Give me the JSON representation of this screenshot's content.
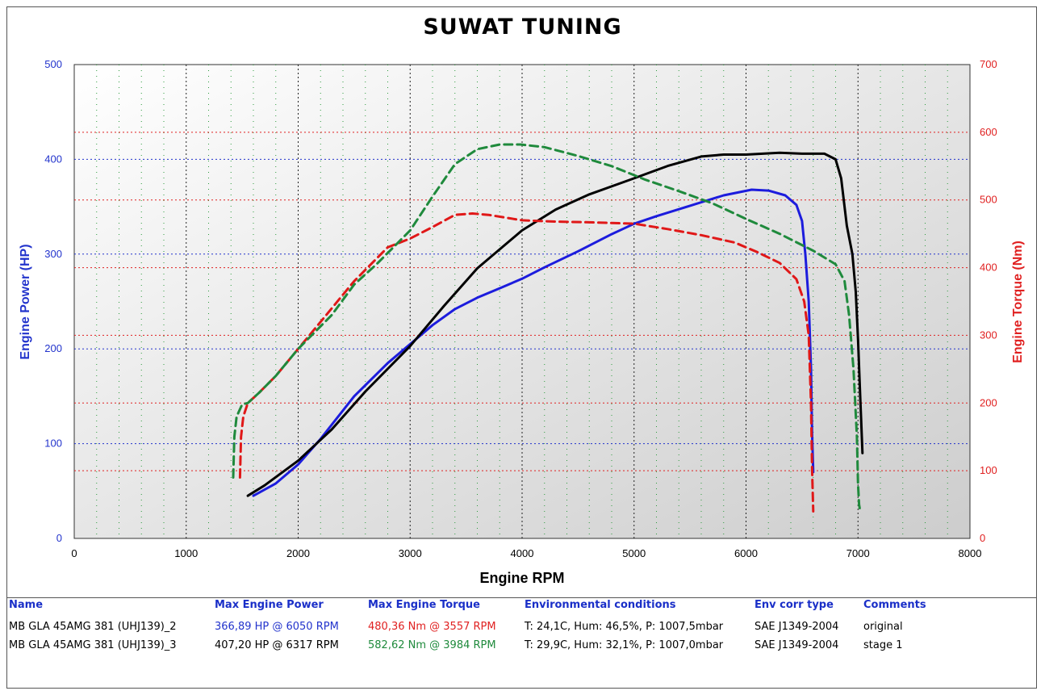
{
  "title": "SUWAT TUNING",
  "colors": {
    "power_axis": "#2233cc",
    "torque_axis": "#e02020",
    "plot_bg_top": "#ffffff",
    "plot_bg_bottom": "#cfcfcf"
  },
  "chart_data": {
    "type": "line",
    "xlabel": "Engine RPM",
    "ylabel_left": "Engine Power (HP)",
    "ylabel_right": "Engine Torque (Nm)",
    "xlim": [
      0,
      8000
    ],
    "ylim_left": [
      0,
      500
    ],
    "ylim_right": [
      0,
      700
    ],
    "x_ticks": [
      0,
      1000,
      2000,
      3000,
      4000,
      5000,
      6000,
      7000,
      8000
    ],
    "y_left_ticks": [
      0,
      100,
      200,
      300,
      400,
      500
    ],
    "y_right_ticks": [
      0,
      100,
      200,
      300,
      400,
      500,
      600,
      700
    ],
    "grid": true,
    "series": [
      {
        "name": "MB GLA 45AMG 381 (UHJ139)_2",
        "axis": "left",
        "color": "#1c1cdd",
        "dash": false,
        "x": [
          1600,
          1800,
          2000,
          2200,
          2500,
          2800,
          3000,
          3200,
          3400,
          3600,
          3800,
          4000,
          4200,
          4500,
          4800,
          5000,
          5200,
          5500,
          5800,
          6050,
          6200,
          6350,
          6450,
          6500,
          6530,
          6560,
          6580,
          6590,
          6600
        ],
        "y": [
          45,
          58,
          78,
          105,
          150,
          185,
          205,
          225,
          242,
          254,
          264,
          274,
          286,
          303,
          321,
          332,
          340,
          351,
          362,
          368,
          367,
          362,
          352,
          335,
          300,
          250,
          180,
          110,
          70
        ]
      },
      {
        "name": "MB GLA 45AMG 381 (UHJ139)_3",
        "axis": "left",
        "color": "#000000",
        "dash": false,
        "x": [
          1550,
          1700,
          2000,
          2300,
          2600,
          3000,
          3300,
          3600,
          4000,
          4300,
          4600,
          5000,
          5300,
          5600,
          5800,
          6000,
          6300,
          6500,
          6700,
          6800,
          6850,
          6900,
          6950,
          6980,
          7000,
          7020,
          7040
        ],
        "y": [
          45,
          56,
          82,
          115,
          155,
          203,
          245,
          285,
          325,
          347,
          363,
          380,
          393,
          403,
          405,
          405,
          407,
          406,
          406,
          400,
          380,
          330,
          300,
          260,
          210,
          150,
          90
        ]
      },
      {
        "name": "MB GLA 45AMG 381 (UHJ139)_2 torque",
        "axis": "right",
        "color": "#e01818",
        "dash": true,
        "x": [
          1480,
          1490,
          1510,
          1550,
          1650,
          1800,
          2000,
          2200,
          2500,
          2800,
          3000,
          3200,
          3400,
          3557,
          3700,
          4000,
          4300,
          4600,
          5000,
          5300,
          5600,
          5900,
          6100,
          6300,
          6450,
          6520,
          6560,
          6580,
          6590,
          6600
        ],
        "y": [
          90,
          150,
          180,
          200,
          215,
          240,
          280,
          320,
          380,
          430,
          443,
          460,
          478,
          480,
          478,
          470,
          468,
          467,
          465,
          457,
          448,
          437,
          423,
          407,
          383,
          350,
          300,
          200,
          100,
          40
        ]
      },
      {
        "name": "MB GLA 45AMG 381 (UHJ139)_3 torque",
        "axis": "right",
        "color": "#1f8a3c",
        "dash": true,
        "x": [
          1420,
          1430,
          1450,
          1500,
          1550,
          1650,
          1800,
          2000,
          2300,
          2500,
          2700,
          3000,
          3200,
          3400,
          3600,
          3800,
          3984,
          4200,
          4500,
          4800,
          5100,
          5400,
          5700,
          6000,
          6300,
          6600,
          6800,
          6880,
          6920,
          6960,
          6990,
          7000,
          7010,
          7020
        ],
        "y": [
          90,
          150,
          180,
          198,
          200,
          215,
          240,
          280,
          330,
          375,
          405,
          455,
          505,
          553,
          575,
          582,
          582,
          578,
          565,
          550,
          530,
          513,
          495,
          472,
          450,
          425,
          405,
          380,
          330,
          250,
          150,
          80,
          50,
          40
        ]
      }
    ]
  },
  "table": {
    "headers": {
      "name": "Name",
      "power": "Max Engine Power",
      "torque": "Max Engine Torque",
      "env": "Environmental conditions",
      "corr": "Env corr type",
      "comments": "Comments"
    },
    "rows": [
      {
        "name": "MB GLA 45AMG 381 (UHJ139)_2",
        "power": "366,89 HP @ 6050 RPM",
        "torque": "480,36 Nm @ 3557 RPM",
        "env": "T: 24,1C, Hum: 46,5%, P: 1007,5mbar",
        "corr": "SAE J1349-2004",
        "comments": "original",
        "power_color": "#2233cc",
        "torque_color": "#e02020"
      },
      {
        "name": "MB GLA 45AMG 381 (UHJ139)_3",
        "power": "407,20 HP @ 6317 RPM",
        "torque": "582,62 Nm @ 3984 RPM",
        "env": "T: 29,9C, Hum: 32,1%, P: 1007,0mbar",
        "corr": "SAE J1349-2004",
        "comments": "stage 1",
        "power_color": "#000000",
        "torque_color": "#1f8a3c"
      }
    ]
  }
}
